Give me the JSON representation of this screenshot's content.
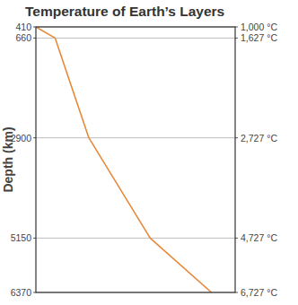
{
  "chart_data": {
    "type": "line",
    "title": "Temperature of Earth’s Layers",
    "y_label": "Depth (km)",
    "x": [
      1000,
      1627,
      2727,
      4727,
      6727
    ],
    "values": [
      410,
      660,
      2900,
      5150,
      6370
    ],
    "color": "#e8893a",
    "xlim": [
      1000,
      7500
    ],
    "ylim": [
      410,
      6370
    ],
    "yticks": [
      410,
      660,
      2900,
      5150,
      6370
    ],
    "y2lim": [
      410,
      6370
    ],
    "y2ticks": [
      {
        "value": 410,
        "label": "1,000 °C"
      },
      {
        "value": 660,
        "label": "1,627 °C"
      },
      {
        "value": 2900,
        "label": "2,727 °C"
      },
      {
        "value": 5150,
        "label": "4,727 °C"
      },
      {
        "value": 6370,
        "label": "6,727 °C"
      }
    ],
    "grid": true,
    "tick_labels": "y"
  }
}
